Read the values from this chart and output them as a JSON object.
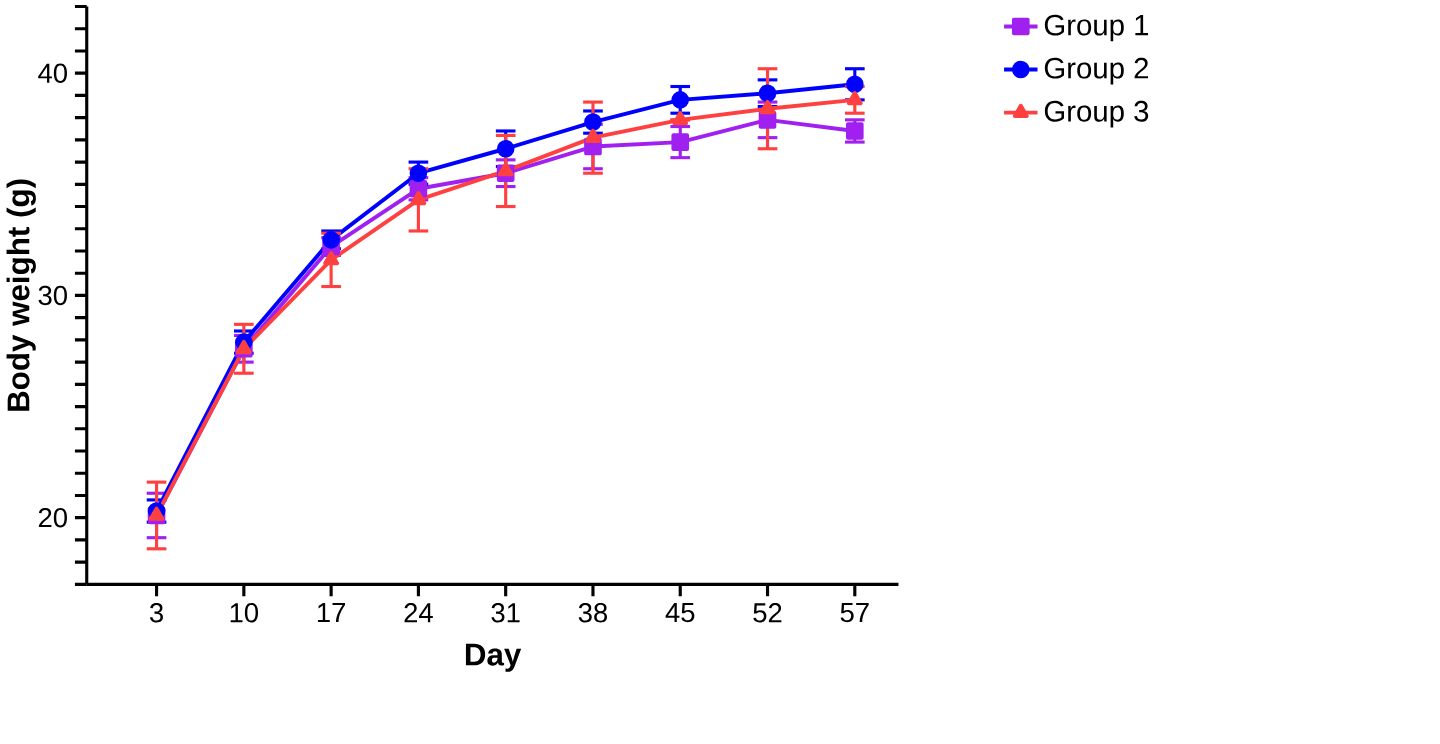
{
  "chart_data": {
    "type": "line",
    "xlabel": "Day",
    "ylabel": "Body weight (g)",
    "categories": [
      "3",
      "10",
      "17",
      "24",
      "31",
      "38",
      "45",
      "52",
      "57"
    ],
    "ylim": [
      17,
      43
    ],
    "yticks": [
      {
        "value": 17,
        "label": null
      },
      {
        "value": 18,
        "label": null
      },
      {
        "value": 19,
        "label": null
      },
      20,
      {
        "value": 21,
        "label": null
      },
      {
        "value": 22,
        "label": null
      },
      {
        "value": 23,
        "label": null
      },
      {
        "value": 24,
        "label": null
      },
      {
        "value": 25,
        "label": null
      },
      {
        "value": 26,
        "label": null
      },
      {
        "value": 27,
        "label": null
      },
      {
        "value": 28,
        "label": null
      },
      {
        "value": 29,
        "label": null
      },
      30,
      {
        "value": 31,
        "label": null
      },
      {
        "value": 32,
        "label": null
      },
      {
        "value": 33,
        "label": null
      },
      {
        "value": 34,
        "label": null
      },
      {
        "value": 35,
        "label": null
      },
      {
        "value": 36,
        "label": null
      },
      {
        "value": 37,
        "label": null
      },
      {
        "value": 38,
        "label": null
      },
      {
        "value": 39,
        "label": null
      },
      40,
      {
        "value": 41,
        "label": null
      },
      {
        "value": 42,
        "label": null
      },
      {
        "value": 43,
        "label": null
      }
    ],
    "grid": false,
    "legend": "top right",
    "line_style": "solid",
    "series": [
      {
        "name": "Group 1",
        "color": "#a020f0",
        "marker": "square",
        "values": [
          20.1,
          27.6,
          32.2,
          34.8,
          35.5,
          36.7,
          36.9,
          37.9,
          37.4
        ],
        "errors": [
          1.0,
          0.6,
          0.4,
          0.5,
          0.6,
          1.0,
          0.7,
          0.8,
          0.5
        ]
      },
      {
        "name": "Group 2",
        "color": "#0000ff",
        "marker": "circle",
        "values": [
          20.3,
          27.9,
          32.5,
          35.5,
          36.6,
          37.8,
          38.8,
          39.1,
          39.5
        ],
        "errors": [
          0.5,
          0.5,
          0.4,
          0.5,
          0.8,
          0.5,
          0.6,
          0.6,
          0.7
        ]
      },
      {
        "name": "Group 3",
        "color": "#ff4040",
        "marker": "triangle",
        "values": [
          20.1,
          27.6,
          31.6,
          34.3,
          35.6,
          37.1,
          37.9,
          38.4,
          38.8
        ],
        "errors": [
          1.5,
          1.1,
          1.2,
          1.4,
          1.6,
          1.6,
          null,
          1.8,
          0.6
        ]
      }
    ]
  }
}
